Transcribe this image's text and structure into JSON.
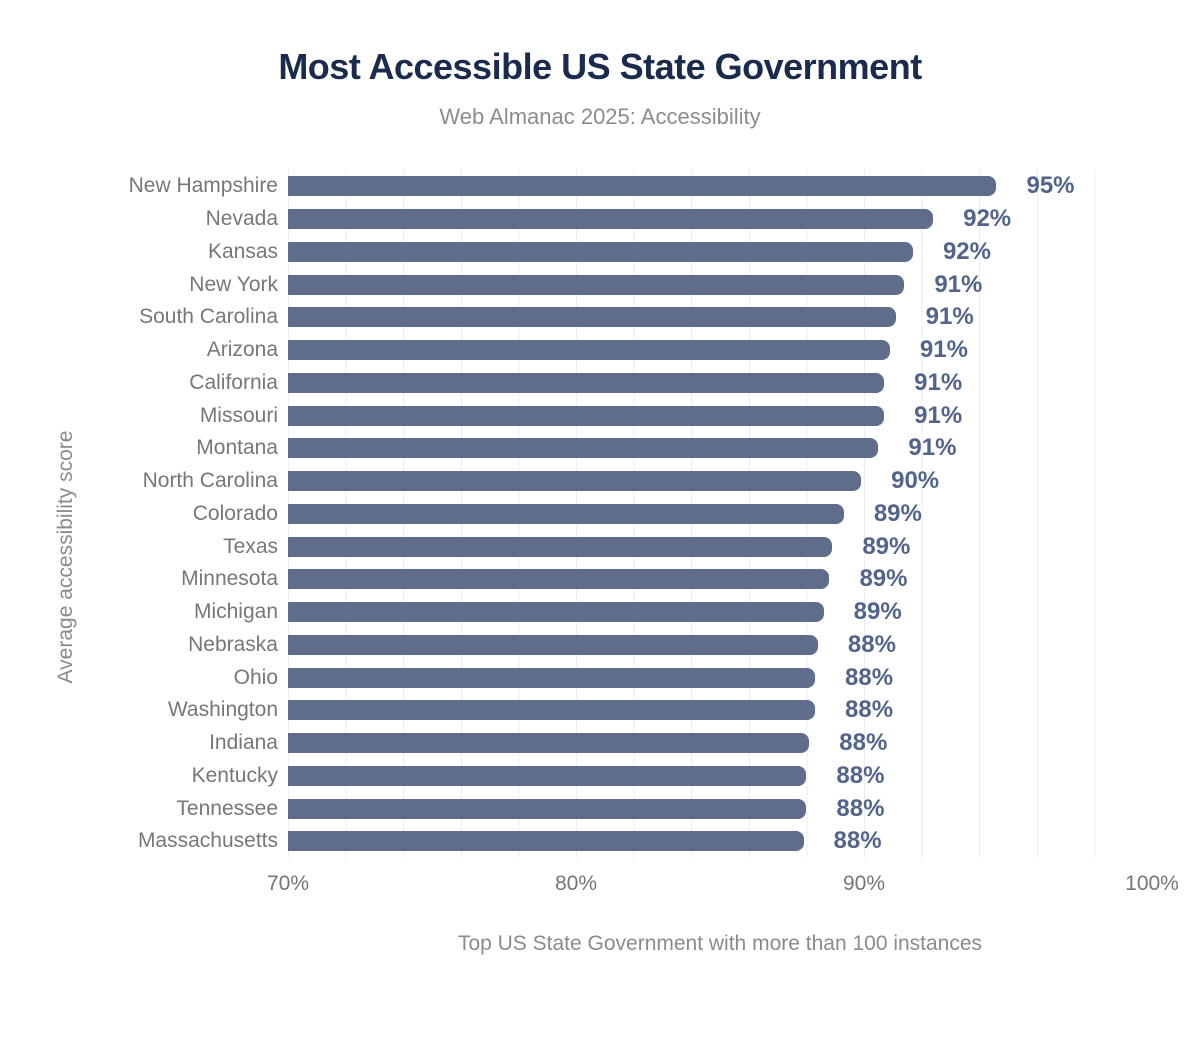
{
  "header": {
    "title": "Most Accessible US State Government",
    "subtitle": "Web Almanac 2025: Accessibility"
  },
  "chart_data": {
    "type": "bar",
    "orientation": "horizontal",
    "title": "Most Accessible US State Government",
    "subtitle": "Web Almanac 2025: Accessibility",
    "ylabel": "Average accessibility score",
    "xlabel": "Top US State Government with more than 100 instances",
    "xlim": [
      70,
      100
    ],
    "x_ticks": [
      "70%",
      "80%",
      "90%",
      "100%"
    ],
    "x_tick_positions_pct": [
      0,
      33.3333,
      66.6667,
      100
    ],
    "grid": "vertical lines every 2%, light gray",
    "legend_position": "none",
    "categories": [
      "New Hampshire",
      "Nevada",
      "Kansas",
      "New York",
      "South Carolina",
      "Arizona",
      "California",
      "Missouri",
      "Montana",
      "North Carolina",
      "Colorado",
      "Texas",
      "Minnesota",
      "Michigan",
      "Nebraska",
      "Ohio",
      "Washington",
      "Indiana",
      "Kentucky",
      "Tennessee",
      "Massachusetts"
    ],
    "values": [
      94.6,
      92.4,
      91.7,
      91.4,
      91.1,
      90.9,
      90.7,
      90.7,
      90.5,
      89.9,
      89.3,
      88.9,
      88.8,
      88.6,
      88.4,
      88.3,
      88.3,
      88.1,
      88.0,
      88.0,
      87.9
    ],
    "value_labels": [
      "95%",
      "92%",
      "92%",
      "91%",
      "91%",
      "91%",
      "91%",
      "91%",
      "91%",
      "90%",
      "89%",
      "89%",
      "89%",
      "89%",
      "88%",
      "88%",
      "88%",
      "88%",
      "88%",
      "88%",
      "88%"
    ]
  },
  "colors": {
    "title": "#1b2b4d",
    "subtitle": "#8c8c8c",
    "bar": "#5f6d8a",
    "value_label": "#53648b",
    "category_label": "#777777",
    "axis_tick": "#767676",
    "caption": "#8b8b8b",
    "gridline": "#ececec",
    "background": "#ffffff"
  }
}
